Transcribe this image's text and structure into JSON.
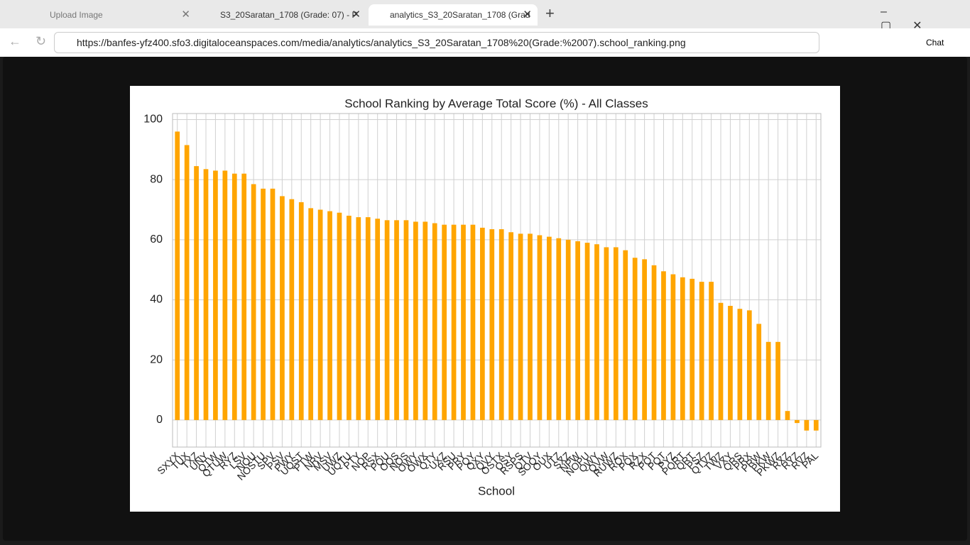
{
  "browser": {
    "tabs": [
      "Upload Image",
      "S3_20Saratan_1708 (Grade: 07) - P",
      "analytics_S3_20Saratan_1708 (Grad"
    ],
    "url": "https://banfes-yfz400.sfo3.digitaloceanspaces.com/media/analytics/analytics_S3_20Saratan_1708%20(Grade:%2007).school_ranking.png",
    "chat": "Chat"
  },
  "chart_data": {
    "type": "bar",
    "title": "School Ranking by Average Total Score (%) - All Classes",
    "x_label": "School",
    "categories": [
      "SXYX",
      "TUX",
      "TXZ",
      "UNY",
      "QTW",
      "QTUW",
      "RYZ",
      "LSV",
      "NOU",
      "NOSTU",
      "SPV",
      "PSV",
      "PWY",
      "UQST",
      "PTW",
      "NRV",
      "MSV",
      "UWZ",
      "UQTU",
      "PTY",
      "NOP",
      "RSX",
      "PQU",
      "OQS",
      "NOS",
      "OWY",
      "OWX",
      "QTY",
      "UXZ",
      "RSU",
      "PRY",
      "PQY",
      "QXY",
      "QVY",
      "OSTX",
      "OSY",
      "RSPS",
      "QTV",
      "SOQY",
      "OUX",
      "UTZ",
      "SXZ",
      "NPW",
      "NOPU",
      "QWY",
      "QVW",
      "RUWZ",
      "ROX",
      "PQX",
      "RZX",
      "POT",
      "PQT",
      "PYZ",
      "PQRT",
      "QRT",
      "PSZ",
      "QTVZ",
      "TWZ",
      "VXY",
      "QRS",
      "PRX",
      "PRW",
      "PKW",
      "PKWZ",
      "RXZ",
      "RYZ",
      "RVZ",
      "PAL"
    ],
    "values": [
      96,
      91.5,
      84.5,
      83.5,
      83,
      83,
      82,
      82,
      78.5,
      77,
      77,
      74.5,
      73.5,
      72.5,
      70.5,
      70,
      69.5,
      69,
      68,
      67.5,
      67.5,
      67,
      66.5,
      66.5,
      66.5,
      66,
      66,
      65.5,
      65,
      65,
      65,
      65,
      64,
      63.5,
      63.5,
      62.5,
      62,
      62,
      61.5,
      61,
      60.5,
      60,
      59.5,
      59,
      58.5,
      57.5,
      57.5,
      56.5,
      54,
      53.5,
      51.5,
      49.5,
      48.5,
      47.5,
      47,
      46,
      46,
      39,
      38,
      37,
      36.5,
      32,
      26,
      26,
      3,
      -1,
      -3.5,
      -3.5
    ],
    "color": "#ffa500",
    "ylim": [
      -9,
      102
    ],
    "yticks": [
      0,
      20,
      40,
      60,
      80,
      100
    ],
    "grid": true
  }
}
